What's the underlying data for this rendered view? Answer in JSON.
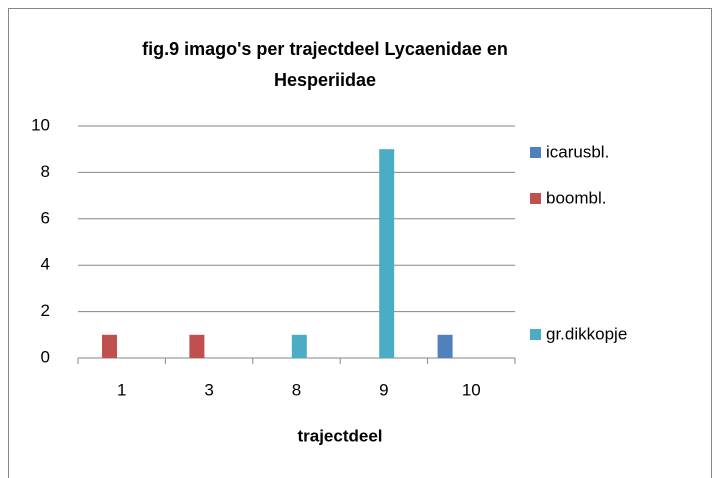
{
  "chart_data": {
    "type": "bar",
    "title": "fig.9 imago's per trajectdeel Lycaenidae en Hesperiidae",
    "x_label": "trajectdeel",
    "categories": [
      "1",
      "3",
      "8",
      "9",
      "10"
    ],
    "series": [
      {
        "name": "icarusbl.",
        "color": "#4f81bd",
        "values": [
          0,
          0,
          0,
          0,
          1
        ]
      },
      {
        "name": "boombl.",
        "color": "#c0504d",
        "values": [
          1,
          1,
          0,
          0,
          0
        ]
      },
      {
        "name": "gr.dikkopje",
        "color": "#4bacc6",
        "values": [
          0,
          0,
          1,
          9,
          0
        ]
      }
    ],
    "ylim": [
      0,
      10
    ],
    "yticks": [
      0,
      2,
      4,
      6,
      8,
      10
    ],
    "grid": true,
    "legend": "right"
  }
}
